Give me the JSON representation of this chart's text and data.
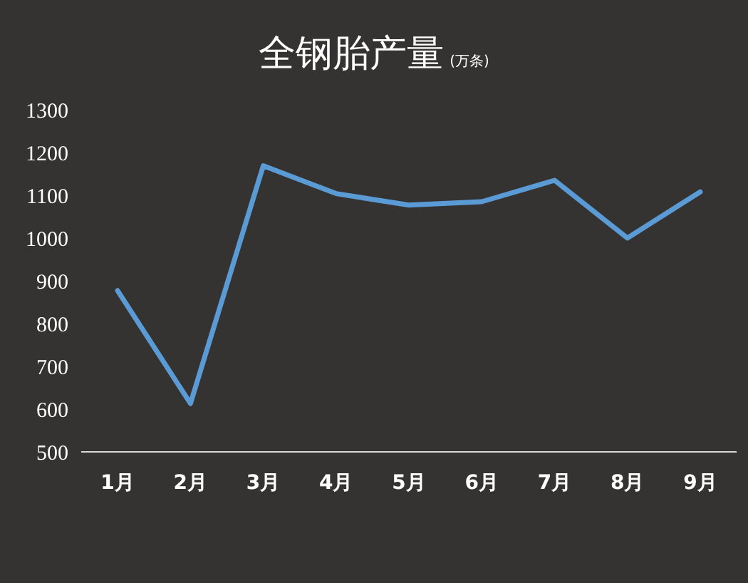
{
  "chart_data": {
    "type": "line",
    "title": "全钢胎产量",
    "subtitle": "(万条)",
    "categories": [
      "1月",
      "2月",
      "3月",
      "4月",
      "5月",
      "6月",
      "7月",
      "8月",
      "9月"
    ],
    "values": [
      877,
      613,
      1169,
      1104,
      1077,
      1085,
      1135,
      1000,
      1108
    ],
    "color": "#5b9bd5",
    "ylim": [
      500,
      1300
    ],
    "yticks": [
      500,
      600,
      700,
      800,
      900,
      1000,
      1100,
      1200,
      1300
    ],
    "grid": false,
    "line_style": "solid"
  }
}
